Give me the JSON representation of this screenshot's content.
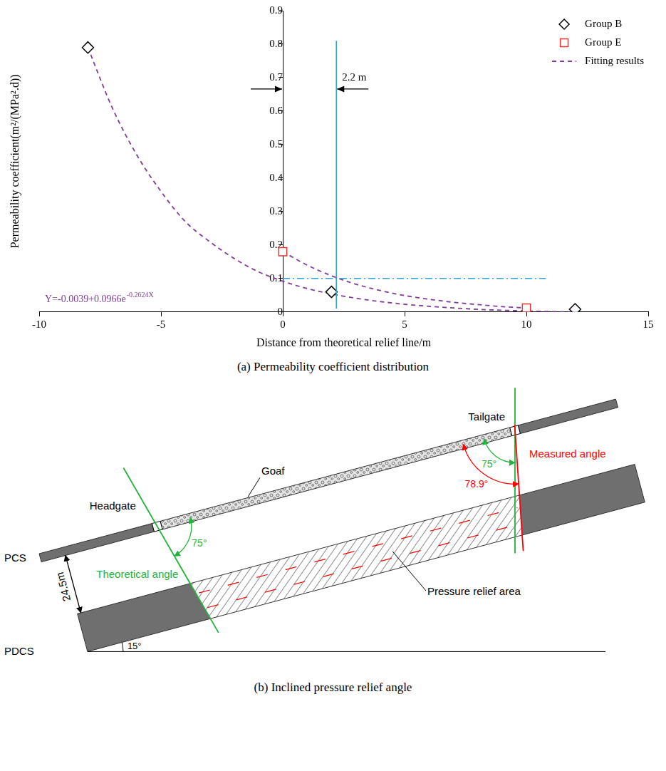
{
  "chart_data": {
    "type": "scatter",
    "caption": "(a) Permeability coefficient distribution",
    "x_label": "Distance from theoretical relief line/m",
    "y_label": "Permeability coefficient(m²/(MPa².d))",
    "xlim": [
      -10,
      15
    ],
    "xticks": [
      -10,
      -5,
      0,
      5,
      10,
      15
    ],
    "ylim": [
      0,
      0.9
    ],
    "yticks": [
      0,
      0.1,
      0.2,
      0.3,
      0.4,
      0.5,
      0.6,
      0.7,
      0.8,
      0.9
    ],
    "grid": false,
    "legend": "upper right",
    "series": [
      {
        "name": "Group B",
        "type": "scatter",
        "marker": "diamond",
        "color": "#000000",
        "x": [
          -8,
          2,
          12
        ],
        "values": [
          0.79,
          0.06,
          0.008
        ]
      },
      {
        "name": "Group E",
        "type": "scatter",
        "marker": "square",
        "color": "#e8322f",
        "x": [
          0,
          10
        ],
        "values": [
          0.18,
          0.012
        ]
      },
      {
        "name": "Fitting results",
        "type": "line",
        "marker": "none",
        "line_style": "dashed",
        "color": "#7f3f98",
        "x": [
          -8,
          -7,
          -6,
          -5,
          -4,
          -3,
          -2,
          -1,
          0,
          1,
          2,
          3,
          4,
          5,
          6,
          7,
          8,
          9,
          10,
          11,
          12
        ],
        "values": [
          0.79,
          0.61,
          0.47,
          0.36,
          0.27,
          0.21,
          0.16,
          0.12,
          0.092,
          0.07,
          0.054,
          0.041,
          0.031,
          0.023,
          0.017,
          0.012,
          0.008,
          0.005,
          0.003,
          0.001,
          0.0
        ]
      },
      {
        "name": "Fitting results",
        "type": "line",
        "marker": "none",
        "line_style": "dashed",
        "color": "#7f3f98",
        "x": [
          0,
          1,
          2,
          3,
          4,
          5,
          6,
          7,
          8,
          9,
          10
        ],
        "values": [
          0.18,
          0.14,
          0.108,
          0.083,
          0.064,
          0.049,
          0.038,
          0.029,
          0.022,
          0.016,
          0.012
        ]
      }
    ],
    "reference_lines": [
      {
        "x": 2.2,
        "y_range": [
          0.01,
          0.81
        ],
        "line_style": "solid",
        "color": "#2ea6d9"
      },
      {
        "y": 0.1,
        "x_range": [
          0,
          10.8
        ],
        "line_style": "dashdot",
        "color": "#2ea6d9"
      }
    ],
    "dimension": {
      "from": 0,
      "to": 2.2,
      "label": "2.2 m"
    },
    "equation": {
      "text": "Y=-0.0039+0.0966e",
      "superscript": "-0.2624X"
    }
  },
  "diagram": {
    "caption": "(b) Inclined pressure relief angle",
    "labels": {
      "pcs": "PCS",
      "pdcs": "PDCS",
      "goaf": "Goaf",
      "headgate": "Headgate",
      "tailgate": "Tailgate",
      "pressure_relief_area": "Pressure relief area",
      "theoretical": "Theoretical angle",
      "measured": "Measured angle"
    },
    "seam_dip": {
      "value": 15,
      "label": "15°"
    },
    "seam_spacing": {
      "value": 24.5,
      "label": "24.5m"
    },
    "theoretical_angle": {
      "value": 75,
      "label": "75°"
    },
    "measured_angle": {
      "value": 78.9,
      "label": "78.9°"
    }
  }
}
